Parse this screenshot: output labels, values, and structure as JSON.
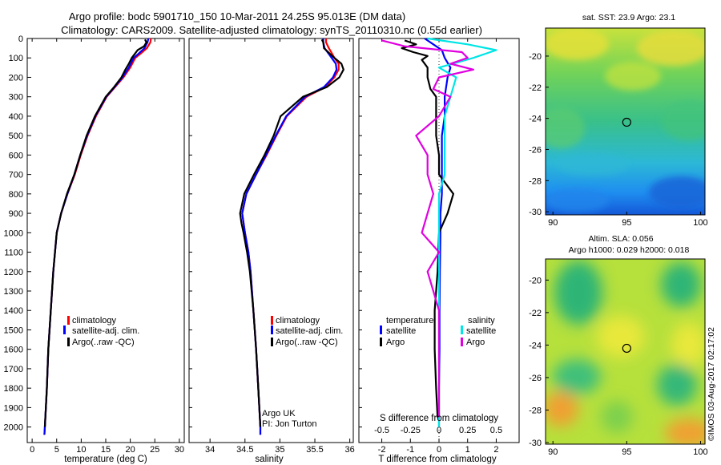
{
  "header": {
    "title_line1": "Argo profile: bodc 5901710_150 10-Mar-2011 24.25S 95.013E (DM data)",
    "title_line2": "Climatology: CARS2009. Satellite-adjusted climatology: synTS_20110310.nc (0.55d earlier)"
  },
  "colors": {
    "climatology": "#ff0000",
    "satellite_adj": "#0000ff",
    "argo": "#000000",
    "salinity_sat": "#00e5e5",
    "salinity_argo": "#e000e0"
  },
  "chart_data": [
    {
      "id": "temperature",
      "type": "line",
      "xlabel": "temperature (deg C)",
      "xlim": [
        -1,
        31
      ],
      "ylim": [
        2080,
        0
      ],
      "xticks": [
        "0",
        "5",
        "10",
        "15",
        "20",
        "25",
        "30"
      ],
      "xtick_values": [
        0,
        5,
        10,
        15,
        20,
        25,
        30
      ],
      "yticks": [
        "0",
        "100",
        "200",
        "300",
        "400",
        "500",
        "600",
        "700",
        "800",
        "900",
        "1000",
        "1100",
        "1200",
        "1300",
        "1400",
        "1500",
        "1600",
        "1700",
        "1800",
        "1900",
        "2000"
      ],
      "ytick_values": [
        0,
        100,
        200,
        300,
        400,
        500,
        600,
        700,
        800,
        900,
        1000,
        1100,
        1200,
        1300,
        1400,
        1500,
        1600,
        1700,
        1800,
        1900,
        2000
      ],
      "legend": [
        "climatology",
        "satellite-adj. clim.",
        "Argo(..raw -QC)"
      ],
      "series": [
        {
          "name": "climatology",
          "depth": [
            0,
            20,
            50,
            80,
            100,
            150,
            200,
            250,
            300,
            400,
            500,
            600,
            700,
            800,
            900,
            1000,
            1200,
            1400,
            1600,
            1800,
            2000,
            2040
          ],
          "values": [
            24.2,
            24.1,
            23.4,
            22.0,
            21.0,
            20.0,
            18.6,
            16.9,
            15.2,
            13.0,
            11.3,
            9.9,
            8.7,
            7.2,
            5.9,
            5.0,
            4.3,
            3.8,
            3.3,
            3.0,
            2.6,
            2.5
          ]
        },
        {
          "name": "satellite-adj. clim.",
          "depth": [
            0,
            20,
            50,
            80,
            100,
            150,
            200,
            250,
            300,
            400,
            500,
            600,
            700,
            800,
            900,
            1000,
            1200,
            1400,
            1600,
            1800,
            2000,
            2040
          ],
          "values": [
            23.7,
            23.5,
            22.9,
            21.6,
            20.7,
            19.7,
            18.4,
            16.8,
            15.1,
            12.9,
            11.2,
            9.8,
            8.6,
            7.2,
            5.9,
            5.0,
            4.3,
            3.8,
            3.3,
            3.0,
            2.6,
            2.5
          ]
        },
        {
          "name": "Argo(..raw -QC)",
          "depth": [
            5,
            20,
            40,
            60,
            80,
            100,
            130,
            160,
            200,
            250,
            300,
            400,
            500,
            600,
            700,
            800,
            900,
            1000,
            1200,
            1400,
            1600,
            1800,
            2000
          ],
          "values": [
            23.0,
            23.3,
            22.8,
            21.5,
            20.9,
            20.3,
            19.7,
            19.0,
            18.2,
            16.7,
            15.0,
            12.8,
            11.1,
            9.8,
            8.6,
            7.1,
            5.9,
            5.0,
            4.3,
            3.8,
            3.3,
            3.0,
            2.6
          ]
        }
      ]
    },
    {
      "id": "salinity",
      "type": "line",
      "xlabel": "salinity",
      "xlim": [
        33.7,
        36.05
      ],
      "ylim": [
        2080,
        0
      ],
      "xticks": [
        "34",
        "34.5",
        "35",
        "35.5",
        "36"
      ],
      "xtick_values": [
        34,
        34.5,
        35,
        35.5,
        36
      ],
      "legend": [
        "climatology",
        "satellite-adj. clim.",
        "Argo(..raw -QC)"
      ],
      "annotation": [
        "Argo UK",
        "PI: Jon Turton"
      ],
      "series": [
        {
          "name": "climatology",
          "depth": [
            0,
            20,
            50,
            80,
            100,
            130,
            160,
            200,
            250,
            300,
            400,
            500,
            600,
            700,
            800,
            900,
            1000,
            1100,
            1200,
            1400,
            1600,
            1800,
            2000,
            2040
          ],
          "values": [
            35.66,
            35.66,
            35.7,
            35.75,
            35.78,
            35.84,
            35.84,
            35.78,
            35.65,
            35.38,
            35.1,
            34.95,
            34.81,
            34.66,
            34.52,
            34.46,
            34.5,
            34.55,
            34.58,
            34.62,
            34.66,
            34.69,
            34.72,
            34.72
          ]
        },
        {
          "name": "satellite-adj. clim.",
          "depth": [
            0,
            20,
            50,
            80,
            100,
            130,
            160,
            200,
            250,
            300,
            400,
            500,
            600,
            700,
            800,
            900,
            1000,
            1100,
            1200,
            1400,
            1600,
            1800,
            2000,
            2040
          ],
          "values": [
            35.62,
            35.62,
            35.64,
            35.7,
            35.74,
            35.8,
            35.81,
            35.76,
            35.63,
            35.36,
            35.09,
            34.94,
            34.8,
            34.66,
            34.52,
            34.46,
            34.5,
            34.55,
            34.58,
            34.62,
            34.66,
            34.69,
            34.72,
            34.72
          ]
        },
        {
          "name": "Argo(..raw -QC)",
          "depth": [
            5,
            20,
            50,
            80,
            100,
            130,
            160,
            200,
            250,
            300,
            400,
            500,
            600,
            700,
            800,
            900,
            950,
            1000,
            1100,
            1200,
            1400,
            1600,
            1800,
            2000
          ],
          "values": [
            35.6,
            35.62,
            35.63,
            35.72,
            35.78,
            35.88,
            35.91,
            35.85,
            35.67,
            35.33,
            35.01,
            34.91,
            34.78,
            34.63,
            34.49,
            34.43,
            34.45,
            34.48,
            34.53,
            34.57,
            34.62,
            34.66,
            34.69,
            34.72
          ]
        }
      ]
    },
    {
      "id": "differences",
      "type": "line",
      "xlabel": "T difference from climatology",
      "xlabel_top": "S difference from climatology",
      "xlim": [
        -2.8,
        2.8
      ],
      "ylim": [
        2080,
        0
      ],
      "xticks": [
        "-2",
        "-1",
        "0",
        "1",
        "2"
      ],
      "xtick_values": [
        -2,
        -1,
        0,
        1,
        2
      ],
      "s_ticks": [
        "-0.5",
        "-0.25",
        "0",
        "0.25",
        "0.5"
      ],
      "s_tick_values": [
        -0.5,
        -0.25,
        0,
        0.25,
        0.5
      ],
      "legend_temperature": {
        "heading": "temperature",
        "items": [
          "satellite",
          "Argo"
        ]
      },
      "legend_salinity": {
        "heading": "salinity",
        "items": [
          "satellite",
          "Argo"
        ]
      },
      "series": [
        {
          "name": "satellite",
          "group": "temperature",
          "depth": [
            0,
            30,
            60,
            100,
            150,
            200,
            300,
            400,
            500,
            600,
            700,
            800,
            900,
            1000,
            1200,
            1400,
            1600,
            1800,
            2000
          ],
          "values": [
            -0.5,
            -0.2,
            0.1,
            0.2,
            0.4,
            0.3,
            0.2,
            0.2,
            0.1,
            0.1,
            0.1,
            0.1,
            0.05,
            0.05,
            0.03,
            0.02,
            0.02,
            0.0,
            0.0
          ]
        },
        {
          "name": "Argo",
          "group": "temperature",
          "depth": [
            10,
            30,
            50,
            70,
            90,
            110,
            150,
            200,
            260,
            300,
            400,
            500,
            600,
            700,
            800,
            900,
            1000,
            1200,
            1400,
            1600,
            1800,
            1950
          ],
          "values": [
            -1.2,
            -0.8,
            -1.3,
            -0.9,
            -0.4,
            -0.6,
            -0.4,
            -0.4,
            -0.3,
            -0.1,
            -0.1,
            -0.1,
            0.0,
            0.0,
            0.5,
            0.3,
            0.0,
            -0.05,
            -0.15,
            -0.15,
            -0.1,
            -0.05
          ]
        },
        {
          "name": "satellite",
          "group": "salinity",
          "depth": [
            0,
            30,
            60,
            100,
            150,
            200,
            300,
            400,
            500,
            600,
            700,
            800,
            900,
            1000,
            1200,
            1400,
            1600,
            1800,
            2000
          ],
          "values": [
            -0.1,
            0.25,
            0.5,
            0.3,
            0.0,
            0.15,
            0.1,
            0.05,
            0.05,
            0.05,
            0.05,
            0.0,
            0.0,
            0.0,
            0.0,
            0.0,
            0.0,
            0.0,
            0.0
          ]
        },
        {
          "name": "Argo",
          "group": "salinity",
          "depth": [
            10,
            40,
            70,
            100,
            130,
            160,
            200,
            260,
            300,
            400,
            500,
            600,
            700,
            800,
            900,
            1000,
            1100,
            1200,
            1300,
            1400,
            1600,
            1800,
            1950
          ],
          "values": [
            -0.5,
            -0.3,
            0.2,
            0.25,
            0.1,
            0.3,
            0.0,
            -0.05,
            0.1,
            0.0,
            -0.2,
            -0.1,
            -0.1,
            -0.05,
            -0.1,
            -0.15,
            0.0,
            -0.1,
            -0.05,
            0.0,
            0.0,
            0.0,
            0.0
          ]
        }
      ]
    },
    {
      "id": "sst_map",
      "type": "heatmap",
      "title": "sat. SST: 23.9 Argo: 23.1",
      "xlim": [
        89.5,
        100.3
      ],
      "ylim": [
        -30.2,
        -18.2
      ],
      "xticks": [
        "90",
        "95",
        "100"
      ],
      "xtick_values": [
        90,
        95,
        100
      ],
      "yticks": [
        "-20",
        "-22",
        "-24",
        "-26",
        "-28",
        "-30"
      ],
      "ytick_values": [
        -20,
        -22,
        -24,
        -26,
        -28,
        -30
      ],
      "marker": {
        "lon": 95.0,
        "lat": -24.25
      }
    },
    {
      "id": "sla_map",
      "type": "heatmap",
      "title_line1": "Altim. SLA: 0.056",
      "title_line2": "Argo h1000: 0.029 h2000: 0.018",
      "xlim": [
        89.5,
        100.3
      ],
      "ylim": [
        -30.1,
        -18.7
      ],
      "xticks": [
        "90",
        "95",
        "100"
      ],
      "xtick_values": [
        90,
        95,
        100
      ],
      "yticks": [
        "-20",
        "-22",
        "-24",
        "-26",
        "-28",
        "-30"
      ],
      "ytick_values": [
        -20,
        -22,
        -24,
        -26,
        -28,
        -30
      ],
      "marker": {
        "lon": 95.0,
        "lat": -24.2
      }
    }
  ],
  "footer": {
    "credit": "©IMOS 03-Aug-2017 02:17:02"
  }
}
